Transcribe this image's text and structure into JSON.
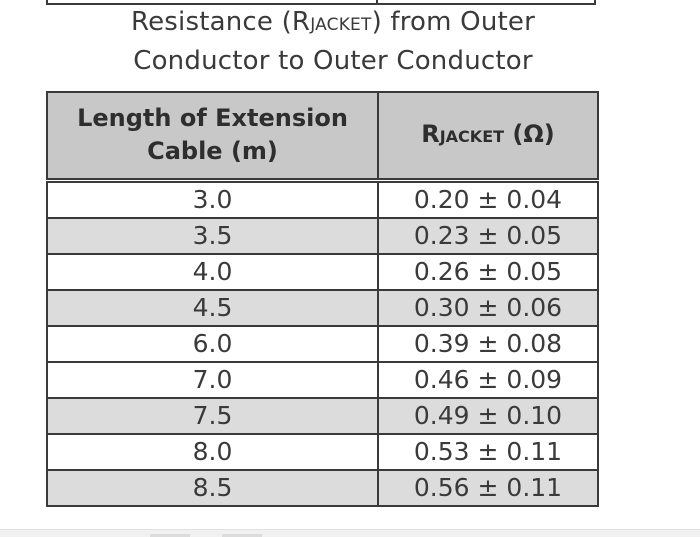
{
  "caption": {
    "line1_pre": "Resistance (R",
    "line1_sub": "JACKET",
    "line1_post": ") from Outer",
    "line2": "Conductor to Outer Conductor"
  },
  "table": {
    "header_length_line1": "Length of Extension",
    "header_length_line2": "Cable (m)",
    "header_r_pre": "R",
    "header_r_sub": "JACKET",
    "header_r_post": " (Ω)",
    "rows": [
      {
        "length": "3.0",
        "r": "0.20 ± 0.04"
      },
      {
        "length": "3.5",
        "r": "0.23 ± 0.05"
      },
      {
        "length": "4.0",
        "r": "0.26 ± 0.05"
      },
      {
        "length": "4.5",
        "r": "0.30 ± 0.06"
      },
      {
        "length": "6.0",
        "r": "0.39 ± 0.08"
      },
      {
        "length": "7.0",
        "r": "0.46 ± 0.09"
      },
      {
        "length": "7.5",
        "r": "0.49 ± 0.10"
      },
      {
        "length": "8.0",
        "r": "0.53 ± 0.11"
      },
      {
        "length": "8.5",
        "r": "0.56 ± 0.11"
      }
    ]
  },
  "colors": {
    "header_fill": "#c8c8c8",
    "shaded_row_fill": "#dcdcdc",
    "border": "#3a3a3a"
  }
}
